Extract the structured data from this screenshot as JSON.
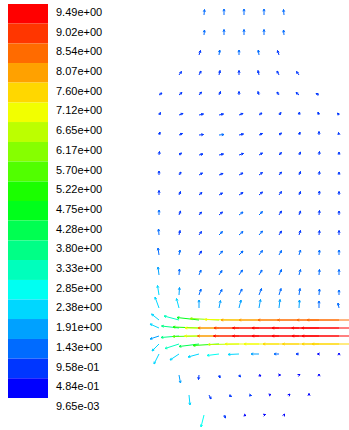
{
  "chart_data": {
    "type": "quiver",
    "tick_labels": false,
    "xlim": [
      0,
      200
    ],
    "ylim": [
      0,
      430
    ],
    "colorbar_range": [
      0.00965,
      9.49
    ],
    "colorbar_ticks": [
      {
        "value": 9.49,
        "label": "9.49e+00"
      },
      {
        "value": 9.02,
        "label": "9.02e+00"
      },
      {
        "value": 8.54,
        "label": "8.54e+00"
      },
      {
        "value": 8.07,
        "label": "8.07e+00"
      },
      {
        "value": 7.6,
        "label": "7.60e+00"
      },
      {
        "value": 7.12,
        "label": "7.12e+00"
      },
      {
        "value": 6.65,
        "label": "6.65e+00"
      },
      {
        "value": 6.17,
        "label": "6.17e+00"
      },
      {
        "value": 5.7,
        "label": "5.70e+00"
      },
      {
        "value": 5.22,
        "label": "5.22e+00"
      },
      {
        "value": 4.75,
        "label": "4.75e+00"
      },
      {
        "value": 4.28,
        "label": "4.28e+00"
      },
      {
        "value": 3.8,
        "label": "3.80e+00"
      },
      {
        "value": 3.33,
        "label": "3.33e+00"
      },
      {
        "value": 2.85,
        "label": "2.85e+00"
      },
      {
        "value": 2.38,
        "label": "2.38e+00"
      },
      {
        "value": 1.91,
        "label": "1.91e+00"
      },
      {
        "value": 1.43,
        "label": "1.43e+00"
      },
      {
        "value": 0.958,
        "label": "9.58e-01"
      },
      {
        "value": 0.484,
        "label": "4.84e-01"
      },
      {
        "value": 0.00965,
        "label": "9.65e-03"
      }
    ],
    "x": [
      55,
      75,
      95,
      115,
      135,
      55,
      75,
      95,
      115,
      135,
      50,
      70,
      90,
      110,
      130,
      30,
      50,
      70,
      90,
      110,
      130,
      150,
      10,
      30,
      50,
      70,
      90,
      110,
      130,
      150,
      170,
      10,
      30,
      50,
      70,
      90,
      110,
      130,
      150,
      170,
      190,
      10,
      30,
      50,
      70,
      90,
      110,
      130,
      150,
      170,
      190,
      10,
      30,
      50,
      70,
      90,
      110,
      130,
      150,
      170,
      190,
      10,
      30,
      50,
      70,
      90,
      110,
      130,
      150,
      170,
      190,
      10,
      30,
      50,
      70,
      90,
      110,
      130,
      150,
      170,
      190,
      10,
      30,
      50,
      70,
      90,
      110,
      130,
      150,
      170,
      190,
      10,
      30,
      50,
      70,
      90,
      110,
      130,
      150,
      170,
      190,
      10,
      30,
      50,
      70,
      90,
      110,
      130,
      150,
      170,
      190,
      10,
      30,
      50,
      70,
      90,
      110,
      130,
      150,
      170,
      190,
      10,
      30,
      50,
      70,
      90,
      110,
      130,
      150,
      170,
      190,
      10,
      30,
      50,
      70,
      90,
      110,
      130,
      150,
      170,
      190,
      10,
      30,
      50,
      70,
      90,
      110,
      130,
      150,
      170,
      190,
      200,
      10,
      30,
      50,
      70,
      90,
      110,
      130,
      150,
      170,
      190,
      200,
      10,
      30,
      50,
      70,
      90,
      110,
      130,
      150,
      170,
      190,
      200,
      10,
      30,
      50,
      70,
      90,
      110,
      130,
      150,
      170,
      190,
      200,
      10,
      30,
      50,
      70,
      90,
      110,
      130,
      150,
      170,
      190,
      30,
      50,
      70,
      90,
      110,
      130,
      150,
      170,
      40,
      60,
      80,
      100,
      120,
      140,
      160,
      55,
      75,
      95,
      115,
      135
    ],
    "y": [
      415,
      415,
      415,
      415,
      415,
      395,
      395,
      395,
      395,
      395,
      375,
      375,
      375,
      375,
      375,
      355,
      355,
      355,
      355,
      355,
      355,
      355,
      335,
      335,
      335,
      335,
      335,
      335,
      335,
      335,
      335,
      315,
      315,
      315,
      315,
      315,
      315,
      315,
      315,
      315,
      315,
      295,
      295,
      295,
      295,
      295,
      295,
      295,
      295,
      295,
      295,
      275,
      275,
      275,
      275,
      275,
      275,
      275,
      275,
      275,
      275,
      255,
      255,
      255,
      255,
      255,
      255,
      255,
      255,
      255,
      255,
      235,
      235,
      235,
      235,
      235,
      235,
      235,
      235,
      235,
      235,
      215,
      215,
      215,
      215,
      215,
      215,
      215,
      215,
      215,
      215,
      195,
      195,
      195,
      195,
      195,
      195,
      195,
      195,
      195,
      195,
      175,
      175,
      175,
      175,
      175,
      175,
      175,
      175,
      175,
      175,
      155,
      155,
      155,
      155,
      155,
      155,
      155,
      155,
      155,
      155,
      135,
      135,
      135,
      135,
      135,
      135,
      135,
      135,
      135,
      135,
      122,
      122,
      122,
      122,
      122,
      122,
      122,
      122,
      122,
      122,
      110,
      110,
      110,
      110,
      110,
      110,
      110,
      110,
      110,
      110,
      110,
      102,
      102,
      102,
      102,
      102,
      102,
      102,
      102,
      102,
      102,
      102,
      94,
      94,
      94,
      94,
      94,
      94,
      94,
      94,
      94,
      94,
      94,
      86,
      86,
      86,
      86,
      86,
      86,
      86,
      86,
      86,
      86,
      86,
      76,
      76,
      76,
      76,
      76,
      76,
      76,
      76,
      76,
      76,
      55,
      55,
      55,
      55,
      55,
      55,
      55,
      55,
      35,
      35,
      35,
      35,
      35,
      35,
      35,
      15,
      15,
      15,
      15,
      15
    ],
    "u": [
      0.1,
      0,
      0,
      0,
      -0.1,
      0.1,
      0,
      0,
      0,
      -0.1,
      0.3,
      0.15,
      0,
      -0.15,
      -0.3,
      0.5,
      0.4,
      0.2,
      0,
      -0.2,
      -0.4,
      -0.5,
      0.6,
      0.6,
      0.5,
      0.3,
      0,
      -0.2,
      -0.4,
      -0.6,
      -0.6,
      0.3,
      0.8,
      0.9,
      0.9,
      0.8,
      0.6,
      0.4,
      0.1,
      -0.2,
      -0.3,
      0.2,
      0.7,
      0.9,
      1.0,
      0.9,
      0.7,
      0.5,
      0.2,
      0,
      -0.1,
      0.1,
      0.5,
      0.8,
      0.9,
      0.9,
      0.7,
      0.5,
      0.3,
      0.1,
      0,
      0,
      0.4,
      0.7,
      0.8,
      0.8,
      0.7,
      0.5,
      0.3,
      0.1,
      0,
      0,
      0.3,
      0.6,
      0.7,
      0.8,
      0.7,
      0.5,
      0.3,
      0.1,
      0,
      0,
      0.3,
      0.5,
      0.7,
      0.8,
      0.7,
      0.5,
      0.3,
      0.1,
      0,
      -0.1,
      0.2,
      0.5,
      0.7,
      0.8,
      0.7,
      0.5,
      0.3,
      0.1,
      0,
      -0.2,
      0.2,
      0.5,
      0.7,
      0.8,
      0.7,
      0.5,
      0.3,
      0.1,
      0,
      -0.2,
      0.1,
      0.4,
      0.6,
      0.7,
      0.6,
      0.5,
      0.3,
      0.1,
      0,
      -0.3,
      0.1,
      0.4,
      0.6,
      0.6,
      0.5,
      0.4,
      0.2,
      0.1,
      0,
      -0.8,
      -0.5,
      0,
      0.3,
      0.4,
      0.3,
      0.2,
      0.1,
      0,
      -0.2,
      -1.5,
      -3.0,
      -4.4,
      -5.8,
      -6.9,
      -7.6,
      -8.0,
      -8.2,
      -8.3,
      -8.4,
      -8.4,
      -1.8,
      -3.5,
      -5.2,
      -6.8,
      -8.2,
      -9.0,
      -9.3,
      -9.4,
      -9.4,
      -9.45,
      -9.45,
      -1.8,
      -3.6,
      -5.3,
      -6.9,
      -8.3,
      -9.1,
      -9.3,
      -9.4,
      -9.4,
      -9.4,
      -9.4,
      -1.4,
      -2.8,
      -4.0,
      -5.2,
      -6.2,
      -6.8,
      -7.0,
      -7.2,
      -7.3,
      -7.4,
      -7.4,
      -1.0,
      -1.8,
      -2.2,
      -2.4,
      -2.2,
      -1.6,
      -1.0,
      -0.6,
      -0.3,
      0,
      0.3,
      -0.1,
      0.2,
      0.3,
      0.4,
      0.3,
      0.2,
      0,
      0.2,
      0.4,
      0.5,
      0.5,
      0.4,
      0.2,
      0,
      -0.6,
      0.3,
      0.4,
      0.3,
      0.1
    ],
    "v": [
      1.1,
      1.2,
      1.2,
      1.2,
      1.1,
      1.0,
      1.1,
      1.1,
      1.1,
      1.0,
      0.9,
      1.0,
      1.0,
      1.0,
      0.9,
      0.7,
      0.8,
      0.9,
      0.9,
      0.9,
      0.8,
      0.7,
      0.4,
      0.5,
      0.6,
      0.7,
      0.7,
      0.7,
      0.6,
      0.5,
      0.3,
      0.5,
      0.3,
      0.2,
      0.2,
      0.3,
      0.4,
      0.5,
      0.6,
      0.6,
      0.4,
      0.6,
      0.3,
      0.1,
      0.1,
      0.2,
      0.3,
      0.4,
      0.6,
      0.7,
      0.5,
      0.7,
      0.4,
      0.2,
      0.2,
      0.3,
      0.4,
      0.5,
      0.6,
      0.7,
      0.6,
      0.8,
      0.6,
      0.4,
      0.3,
      0.4,
      0.5,
      0.6,
      0.7,
      0.7,
      0.6,
      0.9,
      0.7,
      0.5,
      0.4,
      0.5,
      0.6,
      0.7,
      0.7,
      0.8,
      0.7,
      1.0,
      0.8,
      0.6,
      0.6,
      0.6,
      0.7,
      0.8,
      0.8,
      0.9,
      0.8,
      1.2,
      0.9,
      0.7,
      0.7,
      0.7,
      0.8,
      0.8,
      0.9,
      0.9,
      0.9,
      1.4,
      1.0,
      0.8,
      0.8,
      0.8,
      0.9,
      0.9,
      1.0,
      1.0,
      1.0,
      1.6,
      1.2,
      1.0,
      0.9,
      1.0,
      1.0,
      1.1,
      1.1,
      1.1,
      1.1,
      1.9,
      1.5,
      1.2,
      1.1,
      1.2,
      1.3,
      1.3,
      1.3,
      1.2,
      1.0,
      2.2,
      1.9,
      1.6,
      1.5,
      1.6,
      1.7,
      1.7,
      1.6,
      1.4,
      1.0,
      1.2,
      0.8,
      0.5,
      0.3,
      0.1,
      0,
      0,
      0,
      0,
      0,
      0,
      0.8,
      0.4,
      0.2,
      0,
      0,
      0,
      0,
      0,
      0,
      0,
      0,
      -0.6,
      -0.3,
      -0.1,
      0,
      0,
      0,
      0,
      0,
      0,
      0,
      0,
      -1.4,
      -0.9,
      -0.5,
      -0.3,
      -0.1,
      0,
      0,
      0,
      0,
      0,
      0,
      -2.0,
      -1.2,
      -0.6,
      -0.3,
      -0.1,
      0,
      0,
      0,
      0,
      0.2,
      -1.6,
      -0.9,
      -0.6,
      -0.4,
      -0.2,
      0,
      0.1,
      0.2,
      -2.0,
      -0.8,
      -0.3,
      -0.1,
      0.1,
      0.2,
      0.3,
      -2.4,
      -0.6,
      -0.1,
      0.1,
      0.2
    ]
  }
}
